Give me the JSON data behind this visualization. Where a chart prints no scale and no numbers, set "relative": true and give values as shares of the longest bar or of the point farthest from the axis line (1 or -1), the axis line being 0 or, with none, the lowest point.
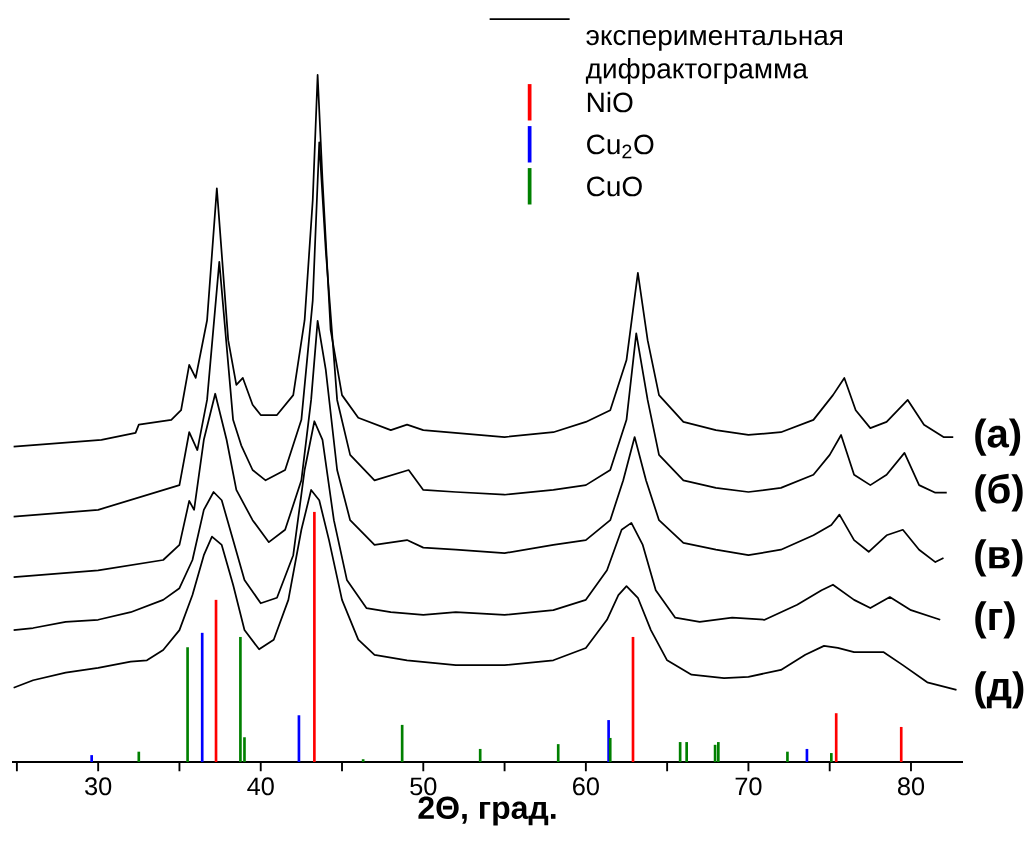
{
  "chart_data": {
    "type": "line",
    "relative": true,
    "xlabel": "**2Θ, град.**",
    "xlim": [
      24.7,
      83.2
    ],
    "xticks": [
      {
        "value": 25,
        "label": null
      },
      30,
      {
        "value": 35,
        "label": null
      },
      40,
      {
        "value": 45,
        "label": null
      },
      50,
      {
        "value": 55,
        "label": null
      },
      60,
      {
        "value": 65,
        "label": null
      },
      70,
      {
        "value": 75,
        "label": null
      },
      80
    ],
    "tick_labels": "x",
    "legend": "top right",
    "annotations": [
      "экспериментальная дифрактограмма"
    ],
    "series": [
      {
        "name": "(а)",
        "color": "#000000",
        "x": [
          24.8,
          30.2,
          32.3,
          32.5,
          34.5,
          35.1,
          35.6,
          36.0,
          36.7,
          37.3,
          38.0,
          38.5,
          38.9,
          39.5,
          40.0,
          41.0,
          42.0,
          42.7,
          43.2,
          43.5,
          43.8,
          44.3,
          45.0,
          46.0,
          48.0,
          49.0,
          50.0,
          55.0,
          58.0,
          60.0,
          61.5,
          62.5,
          63.2,
          63.8,
          64.5,
          66.0,
          68.0,
          70.0,
          72.0,
          74.0,
          75.2,
          75.9,
          76.6,
          77.5,
          78.5,
          79.8,
          80.8,
          82.0,
          82.6
        ],
        "values": [
          0.459,
          0.469,
          0.479,
          0.491,
          0.498,
          0.512,
          0.578,
          0.559,
          0.643,
          0.835,
          0.614,
          0.549,
          0.559,
          0.52,
          0.505,
          0.505,
          0.534,
          0.643,
          0.818,
          1,
          0.847,
          0.629,
          0.534,
          0.501,
          0.483,
          0.491,
          0.483,
          0.473,
          0.48,
          0.495,
          0.512,
          0.585,
          0.712,
          0.614,
          0.534,
          0.495,
          0.483,
          0.476,
          0.48,
          0.498,
          0.534,
          0.559,
          0.512,
          0.486,
          0.495,
          0.527,
          0.491,
          0.473,
          0.473
        ]
      },
      {
        "name": "(б)",
        "color": "#000000",
        "x": [
          24.8,
          30,
          35,
          35.6,
          36.1,
          36.7,
          37.45,
          38.3,
          38.8,
          39.5,
          40.3,
          41.5,
          42.5,
          43.2,
          43.6,
          44.0,
          44.7,
          45.5,
          47,
          49.1,
          50,
          52,
          55,
          58,
          60,
          61.5,
          62.5,
          63.1,
          63.8,
          64.5,
          66,
          68,
          70,
          72,
          74,
          75.0,
          75.7,
          76.5,
          77.5,
          78.5,
          79.6,
          80.5,
          81.5,
          82.2
        ],
        "values": [
          0.357,
          0.367,
          0.403,
          0.48,
          0.454,
          0.527,
          0.728,
          0.498,
          0.461,
          0.425,
          0.41,
          0.425,
          0.498,
          0.672,
          0.902,
          0.745,
          0.527,
          0.447,
          0.41,
          0.425,
          0.396,
          0.393,
          0.389,
          0.396,
          0.403,
          0.425,
          0.498,
          0.624,
          0.527,
          0.447,
          0.41,
          0.399,
          0.393,
          0.399,
          0.418,
          0.447,
          0.476,
          0.418,
          0.403,
          0.418,
          0.45,
          0.403,
          0.392,
          0.392
        ]
      },
      {
        "name": "(в)",
        "color": "#000000",
        "x": [
          24.8,
          30,
          34,
          35,
          35.6,
          35.9,
          36.5,
          37.2,
          37.9,
          38.5,
          39.5,
          40.5,
          41.5,
          42.5,
          43.1,
          43.5,
          44.0,
          44.7,
          45.5,
          47,
          49,
          50,
          52,
          55,
          58,
          60,
          61.5,
          62.3,
          63.0,
          63.7,
          64.5,
          66,
          68,
          70,
          72,
          74,
          75.1,
          75.6,
          76.5,
          77.4,
          78.5,
          79.5,
          80.5,
          81.5,
          82.0
        ],
        "values": [
          0.269,
          0.279,
          0.294,
          0.316,
          0.38,
          0.367,
          0.469,
          0.536,
          0.469,
          0.396,
          0.352,
          0.32,
          0.338,
          0.41,
          0.527,
          0.642,
          0.571,
          0.425,
          0.352,
          0.316,
          0.323,
          0.312,
          0.309,
          0.304,
          0.316,
          0.323,
          0.352,
          0.41,
          0.473,
          0.41,
          0.352,
          0.319,
          0.309,
          0.301,
          0.309,
          0.33,
          0.345,
          0.36,
          0.323,
          0.306,
          0.33,
          0.338,
          0.309,
          0.291,
          0.297
        ]
      },
      {
        "name": "(г)",
        "color": "#000000",
        "x": [
          24.8,
          26,
          28,
          30,
          32,
          34,
          35,
          35.8,
          36.5,
          37.1,
          37.6,
          38.3,
          39,
          40,
          41,
          42,
          42.7,
          43.3,
          43.8,
          44.5,
          45.3,
          46.5,
          48,
          50,
          52,
          55,
          58,
          60,
          61.3,
          62.2,
          62.8,
          63.5,
          64.3,
          65.5,
          67,
          69,
          71,
          73,
          74.5,
          75.2,
          76.5,
          77.5,
          78.7,
          80,
          81.8
        ],
        "values": [
          0.192,
          0.195,
          0.204,
          0.207,
          0.218,
          0.236,
          0.253,
          0.294,
          0.367,
          0.393,
          0.381,
          0.323,
          0.265,
          0.231,
          0.239,
          0.301,
          0.425,
          0.496,
          0.469,
          0.352,
          0.265,
          0.224,
          0.218,
          0.214,
          0.218,
          0.214,
          0.221,
          0.236,
          0.279,
          0.338,
          0.348,
          0.316,
          0.25,
          0.21,
          0.204,
          0.21,
          0.207,
          0.229,
          0.25,
          0.258,
          0.236,
          0.224,
          0.24,
          0.221,
          0.207
        ]
      },
      {
        "name": "(д)",
        "color": "#000000",
        "x": [
          24.8,
          26,
          28,
          30,
          32,
          33,
          34,
          35,
          35.8,
          36.5,
          37.0,
          37.6,
          38.3,
          39,
          39.9,
          40.8,
          41.7,
          42.5,
          43.1,
          43.6,
          44.2,
          45,
          46,
          47,
          49,
          52,
          55,
          58,
          60,
          61.3,
          62.0,
          62.5,
          63.2,
          64,
          65,
          66.5,
          68.5,
          70,
          72,
          73.5,
          74.65,
          75.5,
          76.5,
          78.3,
          79.5,
          81,
          82.8
        ],
        "values": [
          0.108,
          0.119,
          0.13,
          0.137,
          0.146,
          0.148,
          0.163,
          0.192,
          0.243,
          0.301,
          0.328,
          0.316,
          0.258,
          0.192,
          0.164,
          0.178,
          0.236,
          0.338,
          0.396,
          0.381,
          0.323,
          0.236,
          0.178,
          0.156,
          0.148,
          0.141,
          0.141,
          0.148,
          0.166,
          0.207,
          0.243,
          0.256,
          0.239,
          0.192,
          0.148,
          0.127,
          0.122,
          0.124,
          0.134,
          0.156,
          0.169,
          0.166,
          0.16,
          0.16,
          0.141,
          0.116,
          0.105
        ]
      },
      {
        "name": "NiO",
        "type": "bar",
        "color": "#ff0000",
        "x": [
          37.25,
          43.3,
          62.9,
          75.4,
          79.4
        ],
        "values": [
          0.236,
          0.364,
          0.182,
          0.071,
          0.051
        ]
      },
      {
        "name": "Cu$_{2}$O",
        "type": "bar",
        "color": "#0000ff",
        "x": [
          29.6,
          36.4,
          42.35,
          61.4,
          73.6
        ],
        "values": [
          0.01,
          0.188,
          0.068,
          0.061,
          0.019
        ]
      },
      {
        "name": "CuO",
        "type": "bar",
        "color": "#008000",
        "x": [
          32.5,
          35.5,
          38.75,
          39.0,
          46.3,
          48.7,
          53.5,
          58.3,
          61.5,
          65.8,
          66.2,
          67.95,
          68.15,
          72.4,
          75.1
        ],
        "values": [
          0.015,
          0.167,
          0.182,
          0.036,
          0.004,
          0.054,
          0.019,
          0.026,
          0.035,
          0.029,
          0.029,
          0.025,
          0.029,
          0.015,
          0.013
        ]
      }
    ]
  }
}
